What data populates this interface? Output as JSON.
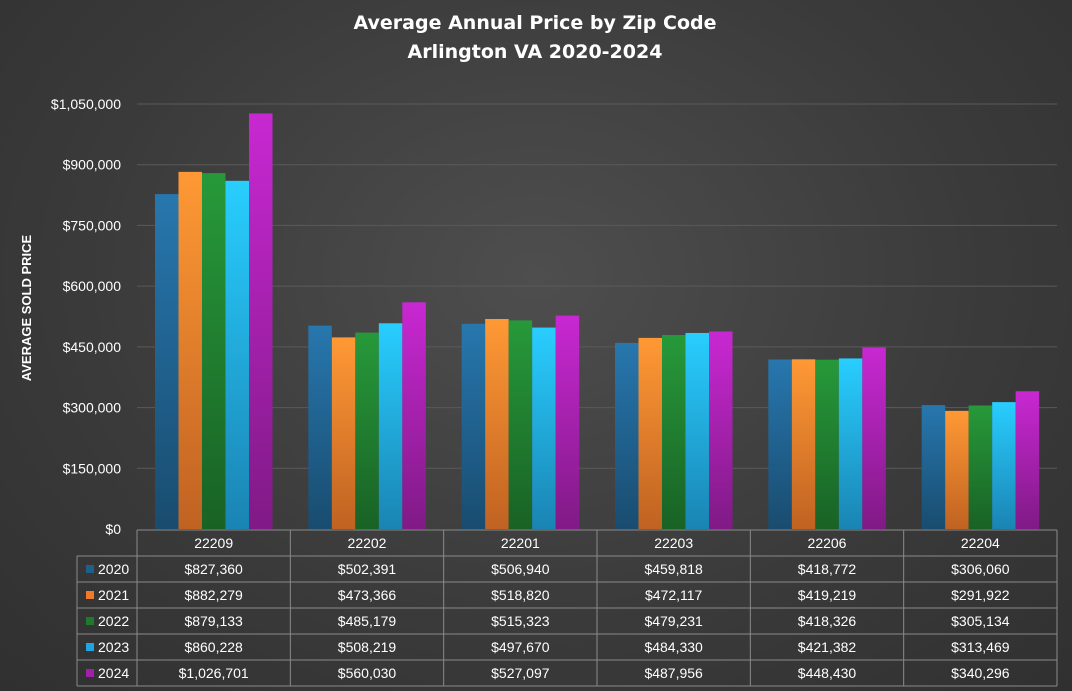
{
  "chart_data": {
    "type": "bar",
    "title": "Average Annual Price by Zip Code",
    "subtitle": "Arlington VA 2020-2024",
    "xlabel": "",
    "ylabel": "AVERAGE SOLD PRICE",
    "ylim": [
      0,
      1050000
    ],
    "yticks": [
      "$0",
      "$150,000",
      "$300,000",
      "$450,000",
      "$600,000",
      "$750,000",
      "$900,000",
      "$1,050,000"
    ],
    "ytick_values": [
      0,
      150000,
      300000,
      450000,
      600000,
      750000,
      900000,
      1050000
    ],
    "grid": true,
    "legend": "data-table",
    "categories": [
      "22209",
      "22202",
      "22201",
      "22203",
      "22206",
      "22204"
    ],
    "series": [
      {
        "name": "2020",
        "color": "#1f5f8b",
        "values": [
          827360,
          502391,
          506940,
          459818,
          418772,
          306060
        ],
        "labels": [
          "$827,360",
          "$502,391",
          "$506,940",
          "$459,818",
          "$418,772",
          "$306,060"
        ]
      },
      {
        "name": "2021",
        "color": "#f07a2a",
        "values": [
          882279,
          473366,
          518820,
          472117,
          419219,
          291922
        ],
        "labels": [
          "$882,279",
          "$473,366",
          "$518,820",
          "$472,117",
          "$419,219",
          "$291,922"
        ]
      },
      {
        "name": "2022",
        "color": "#1f7a2e",
        "values": [
          879133,
          485179,
          515323,
          479231,
          418326,
          305134
        ],
        "labels": [
          "$879,133",
          "$485,179",
          "$515,323",
          "$479,231",
          "$418,326",
          "$305,134"
        ]
      },
      {
        "name": "2023",
        "color": "#20a5e0",
        "values": [
          860228,
          508219,
          497670,
          484330,
          421382,
          313469
        ],
        "labels": [
          "$860,228",
          "$508,219",
          "$497,670",
          "$484,330",
          "$421,382",
          "$313,469"
        ]
      },
      {
        "name": "2024",
        "color": "#a020a8",
        "values": [
          1026701,
          560030,
          527097,
          487956,
          448430,
          340296
        ],
        "labels": [
          "$1,026,701",
          "$560,030",
          "$527,097",
          "$487,956",
          "$448,430",
          "$340,296"
        ]
      }
    ]
  }
}
